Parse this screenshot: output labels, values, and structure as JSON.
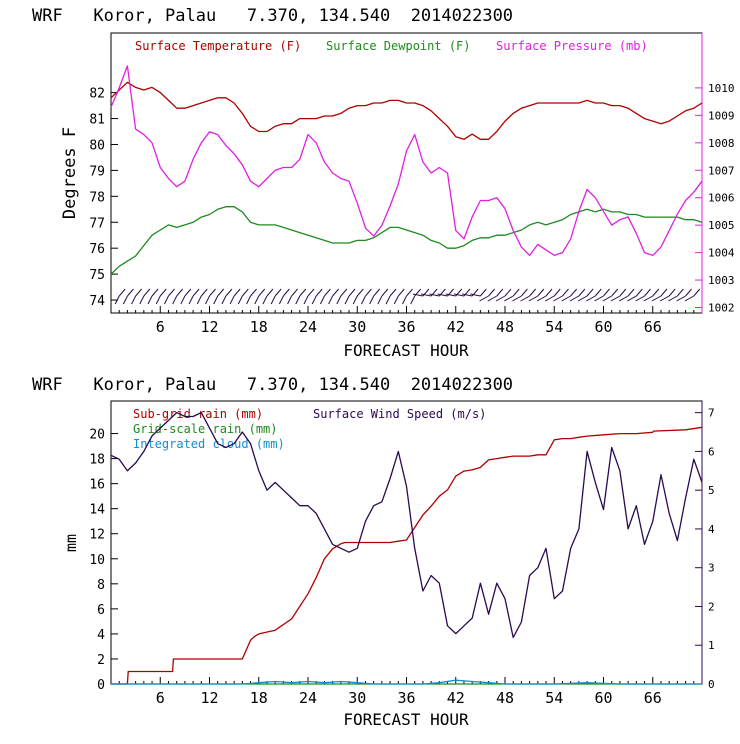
{
  "colors": {
    "temperature": "#b00000",
    "dewpoint": "#1f8a1f",
    "pressure": "#e020e0",
    "subgrid_rain": "#b00000",
    "gridscale_rain": "#1f8a1f",
    "integrated_cloud": "#1090d0",
    "wind_speed": "#2a0a50",
    "wind_barb": "#2a0a50",
    "axis": "#000000"
  },
  "chart_data": [
    {
      "type": "line",
      "title": "WRF   Koror, Palau   7.370, 134.540  2014022300",
      "xlabel": "FORECAST HOUR",
      "ylabel": "Degrees F",
      "y2label": "",
      "xlim": [
        0,
        72
      ],
      "ylim": [
        73.5,
        84.3
      ],
      "y2lim": [
        1001.8,
        1012.0
      ],
      "xticks": [
        "6",
        "12",
        "18",
        "24",
        "30",
        "36",
        "42",
        "48",
        "54",
        "60",
        "66"
      ],
      "yticks": [
        "74",
        "75",
        "76",
        "77",
        "78",
        "79",
        "80",
        "81",
        "82"
      ],
      "y2ticks": [
        "1002",
        "1003",
        "1004",
        "1005",
        "1006",
        "1007",
        "1008",
        "1009",
        "1010"
      ],
      "legend": [
        "Surface Temperature (F)",
        "Surface Dewpoint (F)",
        "Surface Pressure (mb)"
      ],
      "series": [
        {
          "name": "Surface Temperature (F)",
          "axis": "left",
          "x": [
            0,
            1,
            2,
            3,
            4,
            5,
            6,
            7,
            8,
            9,
            10,
            11,
            12,
            13,
            14,
            15,
            16,
            17,
            18,
            19,
            20,
            21,
            22,
            23,
            24,
            25,
            26,
            27,
            28,
            29,
            30,
            31,
            32,
            33,
            34,
            35,
            36,
            37,
            38,
            39,
            40,
            41,
            42,
            43,
            44,
            45,
            46,
            47,
            48,
            49,
            50,
            51,
            52,
            53,
            54,
            55,
            56,
            57,
            58,
            59,
            60,
            61,
            62,
            63,
            64,
            65,
            66,
            67,
            68,
            69,
            70,
            71,
            72
          ],
          "values": [
            81.8,
            82.1,
            82.4,
            82.2,
            82.1,
            82.2,
            82.0,
            81.7,
            81.4,
            81.4,
            81.5,
            81.6,
            81.7,
            81.8,
            81.8,
            81.6,
            81.2,
            80.7,
            80.5,
            80.5,
            80.7,
            80.8,
            80.8,
            81.0,
            81.0,
            81.0,
            81.1,
            81.1,
            81.2,
            81.4,
            81.5,
            81.5,
            81.6,
            81.6,
            81.7,
            81.7,
            81.6,
            81.6,
            81.5,
            81.3,
            81.0,
            80.7,
            80.3,
            80.2,
            80.4,
            80.2,
            80.2,
            80.5,
            80.9,
            81.2,
            81.4,
            81.5,
            81.6,
            81.6,
            81.6,
            81.6,
            81.6,
            81.6,
            81.7,
            81.6,
            81.6,
            81.5,
            81.5,
            81.4,
            81.2,
            81.0,
            80.9,
            80.8,
            80.9,
            81.1,
            81.3,
            81.4,
            81.6
          ]
        },
        {
          "name": "Surface Dewpoint (F)",
          "axis": "left",
          "x": [
            0,
            1,
            2,
            3,
            4,
            5,
            6,
            7,
            8,
            9,
            10,
            11,
            12,
            13,
            14,
            15,
            16,
            17,
            18,
            19,
            20,
            21,
            22,
            23,
            24,
            25,
            26,
            27,
            28,
            29,
            30,
            31,
            32,
            33,
            34,
            35,
            36,
            37,
            38,
            39,
            40,
            41,
            42,
            43,
            44,
            45,
            46,
            47,
            48,
            49,
            50,
            51,
            52,
            53,
            54,
            55,
            56,
            57,
            58,
            59,
            60,
            61,
            62,
            63,
            64,
            65,
            66,
            67,
            68,
            69,
            70,
            71,
            72
          ],
          "values": [
            75.0,
            75.3,
            75.5,
            75.7,
            76.1,
            76.5,
            76.7,
            76.9,
            76.8,
            76.9,
            77.0,
            77.2,
            77.3,
            77.5,
            77.6,
            77.6,
            77.4,
            77.0,
            76.9,
            76.9,
            76.9,
            76.8,
            76.7,
            76.6,
            76.5,
            76.4,
            76.3,
            76.2,
            76.2,
            76.2,
            76.3,
            76.3,
            76.4,
            76.6,
            76.8,
            76.8,
            76.7,
            76.6,
            76.5,
            76.3,
            76.2,
            76.0,
            76.0,
            76.1,
            76.3,
            76.4,
            76.4,
            76.5,
            76.5,
            76.6,
            76.7,
            76.9,
            77.0,
            76.9,
            77.0,
            77.1,
            77.3,
            77.4,
            77.5,
            77.4,
            77.5,
            77.4,
            77.4,
            77.3,
            77.3,
            77.2,
            77.2,
            77.2,
            77.2,
            77.2,
            77.1,
            77.1,
            77.0
          ]
        },
        {
          "name": "Surface Pressure (mb)",
          "axis": "right",
          "x": [
            0,
            1,
            2,
            3,
            4,
            5,
            6,
            7,
            8,
            9,
            10,
            11,
            12,
            13,
            14,
            15,
            16,
            17,
            18,
            19,
            20,
            21,
            22,
            23,
            24,
            25,
            26,
            27,
            28,
            29,
            30,
            31,
            32,
            33,
            34,
            35,
            36,
            37,
            38,
            39,
            40,
            41,
            42,
            43,
            44,
            45,
            46,
            47,
            48,
            49,
            50,
            51,
            52,
            53,
            54,
            55,
            56,
            57,
            58,
            59,
            60,
            61,
            62,
            63,
            64,
            65,
            66,
            67,
            68,
            69,
            70,
            71,
            72
          ],
          "values": [
            1009.3,
            1010.0,
            1010.8,
            1008.5,
            1008.3,
            1008.0,
            1007.1,
            1006.7,
            1006.4,
            1006.6,
            1007.4,
            1008.0,
            1008.4,
            1008.3,
            1007.9,
            1007.6,
            1007.2,
            1006.6,
            1006.4,
            1006.7,
            1007.0,
            1007.1,
            1007.1,
            1007.4,
            1008.3,
            1008.0,
            1007.3,
            1006.9,
            1006.7,
            1006.6,
            1005.8,
            1004.9,
            1004.6,
            1005.0,
            1005.7,
            1006.5,
            1007.7,
            1008.3,
            1007.3,
            1006.9,
            1007.1,
            1006.9,
            1004.8,
            1004.5,
            1005.3,
            1005.9,
            1005.9,
            1006.0,
            1005.6,
            1004.8,
            1004.2,
            1003.9,
            1004.3,
            1004.1,
            1003.9,
            1004.0,
            1004.5,
            1005.5,
            1006.3,
            1006.0,
            1005.5,
            1005.0,
            1005.2,
            1005.3,
            1004.7,
            1004.0,
            1003.9,
            1004.2,
            1004.8,
            1005.4,
            1005.9,
            1006.2,
            1006.6
          ]
        }
      ],
      "wind_barbs": {
        "label": "Surface wind barbs"
      }
    },
    {
      "type": "line",
      "title": "WRF   Koror, Palau   7.370, 134.540  2014022300",
      "xlabel": "FORECAST HOUR",
      "ylabel": "mm",
      "xlim": [
        0,
        72
      ],
      "ylim": [
        0,
        22.6
      ],
      "y2lim": [
        0,
        7.3
      ],
      "xticks": [
        "6",
        "12",
        "18",
        "24",
        "30",
        "36",
        "42",
        "48",
        "54",
        "60",
        "66"
      ],
      "yticks": [
        "0",
        "2",
        "4",
        "6",
        "8",
        "10",
        "12",
        "14",
        "16",
        "18",
        "20"
      ],
      "y2ticks": [
        "0",
        "1",
        "2",
        "3",
        "4",
        "5",
        "6",
        "7"
      ],
      "legend": [
        "Sub-grid rain (mm)",
        "Surface Wind Speed (m/s)",
        "Grid-scale rain (mm)",
        "Integrated cloud (mm)"
      ],
      "series": [
        {
          "name": "Sub-grid rain (mm)",
          "axis": "left",
          "x": [
            0,
            2,
            2.1,
            3,
            6,
            7.5,
            7.6,
            9,
            12,
            13,
            13.1,
            16,
            17,
            17.5,
            18,
            20,
            22,
            23,
            24,
            25,
            26,
            27,
            28,
            28.5,
            29,
            30,
            31,
            32,
            33,
            34,
            35,
            36,
            37,
            38,
            39,
            40,
            41,
            42,
            43,
            44,
            45,
            46,
            47,
            48,
            49,
            50,
            50.1,
            51,
            52,
            53,
            54,
            55,
            56,
            57,
            58,
            60,
            62,
            64,
            66,
            66.1,
            70,
            72
          ],
          "values": [
            0,
            0,
            1,
            1,
            1,
            1,
            2,
            2,
            2,
            2,
            2,
            2,
            3.5,
            3.8,
            4,
            4.3,
            5.2,
            6.2,
            7.2,
            8.5,
            10,
            10.8,
            11.2,
            11.3,
            11.3,
            11.3,
            11.3,
            11.3,
            11.3,
            11.3,
            11.4,
            11.5,
            12.5,
            13.5,
            14.2,
            15,
            15.5,
            16.6,
            17,
            17.1,
            17.3,
            17.9,
            18,
            18.1,
            18.2,
            18.2,
            18.2,
            18.2,
            18.3,
            18.3,
            19.5,
            19.6,
            19.6,
            19.7,
            19.8,
            19.9,
            20,
            20,
            20.1,
            20.2,
            20.3,
            20.5
          ]
        },
        {
          "name": "Grid-scale rain (mm)",
          "axis": "left",
          "x": [
            0,
            72
          ],
          "values": [
            0,
            0
          ]
        },
        {
          "name": "Integrated cloud (mm)",
          "axis": "left",
          "x": [
            0,
            16,
            18,
            20,
            22,
            24,
            26,
            28,
            30,
            32,
            34,
            38,
            40,
            42,
            44,
            46,
            48,
            50,
            54,
            58,
            62,
            66,
            70,
            72
          ],
          "values": [
            0,
            0,
            0.1,
            0.2,
            0.1,
            0.2,
            0.1,
            0.2,
            0.1,
            0,
            0,
            0,
            0.1,
            0.3,
            0.2,
            0.1,
            0,
            0,
            0,
            0.1,
            0,
            0,
            0,
            0
          ]
        },
        {
          "name": "Surface Wind Speed (m/s)",
          "axis": "right",
          "x": [
            0,
            1,
            2,
            3,
            4,
            5,
            6,
            7,
            8,
            9,
            10,
            11,
            12,
            13,
            14,
            15,
            16,
            17,
            18,
            19,
            20,
            21,
            22,
            23,
            24,
            25,
            26,
            27,
            28,
            29,
            30,
            31,
            32,
            33,
            34,
            35,
            36,
            37,
            38,
            39,
            40,
            41,
            42,
            43,
            44,
            45,
            46,
            47,
            48,
            49,
            50,
            51,
            52,
            53,
            54,
            55,
            56,
            57,
            58,
            59,
            60,
            61,
            62,
            63,
            64,
            65,
            66,
            67,
            68,
            69,
            70,
            71,
            72
          ],
          "values": [
            5.9,
            5.8,
            5.5,
            5.7,
            6.0,
            6.4,
            6.6,
            6.8,
            7.0,
            6.9,
            6.9,
            7.0,
            6.6,
            6.2,
            6.1,
            6.2,
            6.5,
            6.2,
            5.5,
            5.0,
            5.2,
            5.0,
            4.8,
            4.6,
            4.6,
            4.4,
            4.0,
            3.6,
            3.5,
            3.4,
            3.5,
            4.2,
            4.6,
            4.7,
            5.3,
            6.0,
            5.1,
            3.5,
            2.4,
            2.8,
            2.6,
            1.5,
            1.3,
            1.5,
            1.7,
            2.6,
            1.8,
            2.6,
            2.2,
            1.2,
            1.6,
            2.8,
            3.0,
            3.5,
            2.2,
            2.4,
            3.5,
            4.0,
            6.0,
            5.2,
            4.5,
            6.1,
            5.5,
            4.0,
            4.6,
            3.6,
            4.2,
            5.4,
            4.4,
            3.7,
            4.8,
            5.8,
            5.2
          ]
        }
      ]
    }
  ]
}
